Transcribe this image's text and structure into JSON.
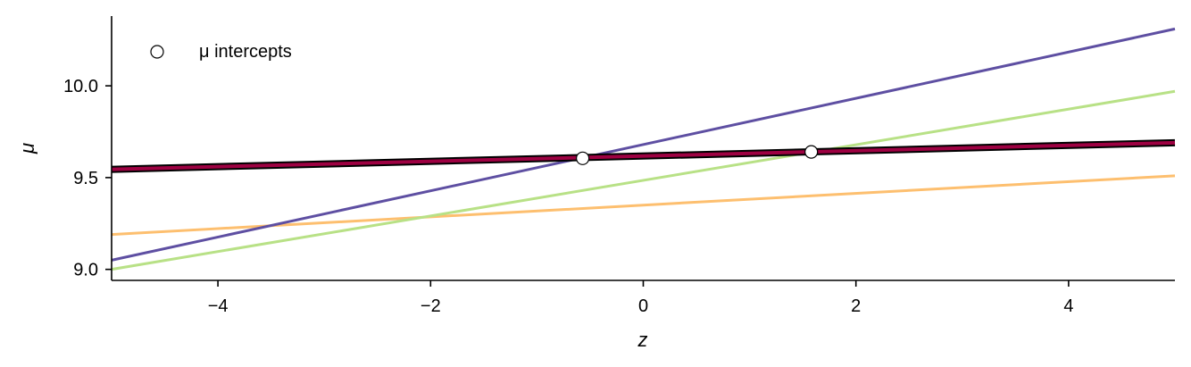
{
  "chart_data": {
    "type": "line",
    "title": "",
    "xlabel": "z",
    "ylabel": "μ",
    "xlim": [
      -5,
      5
    ],
    "ylim": [
      8.94,
      10.38
    ],
    "xticks": [
      -4,
      -2,
      0,
      2,
      4
    ],
    "xtick_labels": [
      "−4",
      "−2",
      "0",
      "2",
      "4"
    ],
    "yticks": [
      9.0,
      9.5,
      10.0
    ],
    "ytick_labels": [
      "9.0",
      "9.5",
      "10.0"
    ],
    "grid": false,
    "legend_position": "top-left",
    "series": [
      {
        "x": [
          -5,
          5
        ],
        "y": [
          9.19,
          9.51
        ],
        "color": "#fdbf6f",
        "style": "plain"
      },
      {
        "x": [
          -5,
          5
        ],
        "y": [
          9.0,
          9.97
        ],
        "color": "#b8e186",
        "style": "plain"
      },
      {
        "x": [
          -5,
          5
        ],
        "y": [
          9.05,
          10.31
        ],
        "color": "#5e4fa2",
        "style": "plain"
      },
      {
        "x": [
          -5,
          5
        ],
        "y": [
          9.545,
          9.69
        ],
        "color": "#9e0142",
        "style": "outlined"
      }
    ],
    "intercepts": {
      "label": "μ intercepts",
      "points": [
        {
          "x": -0.57,
          "y": 9.605
        },
        {
          "x": 1.58,
          "y": 9.64
        }
      ]
    }
  }
}
